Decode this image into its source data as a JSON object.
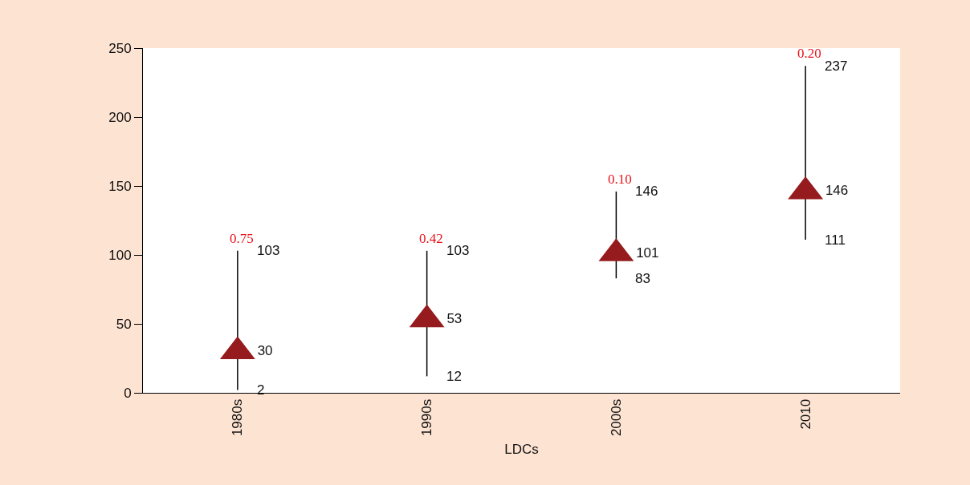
{
  "chart_data": {
    "type": "scatter",
    "xlabel": "LDCs",
    "categories": [
      "1980s",
      "1990s",
      "2000s",
      "2010"
    ],
    "values": [
      30,
      53,
      101,
      146
    ],
    "errors": [
      [
        2,
        103
      ],
      [
        12,
        103
      ],
      [
        83,
        146
      ],
      [
        111,
        237
      ]
    ],
    "color": "#951b1e",
    "marker": "triangle",
    "data_labels": true,
    "ylim": [
      0,
      250
    ],
    "yticks": [
      0,
      50,
      100,
      150,
      200,
      250
    ],
    "grid": false,
    "legend": false,
    "annotations": [
      {
        "text": "2",
        "x": "1980s",
        "y": 2
      },
      {
        "text": "103",
        "x": "1980s",
        "y": 103
      },
      {
        "text": "12",
        "x": "1990s",
        "y": 12
      },
      {
        "text": "103",
        "x": "1990s",
        "y": 103
      },
      {
        "text": "83",
        "x": "2000s",
        "y": 83
      },
      {
        "text": "146",
        "x": "2000s",
        "y": 146
      },
      {
        "text": "111",
        "x": "2010",
        "y": 111
      },
      {
        "text": "237",
        "x": "2010",
        "y": 237
      },
      {
        "text": "0.75",
        "x": "1980s",
        "y": 103
      },
      {
        "text": "0.42",
        "x": "1990s",
        "y": 103
      },
      {
        "text": "0.10",
        "x": "2000s",
        "y": 146
      },
      {
        "text": "0.20",
        "x": "2010",
        "y": 237
      }
    ]
  }
}
